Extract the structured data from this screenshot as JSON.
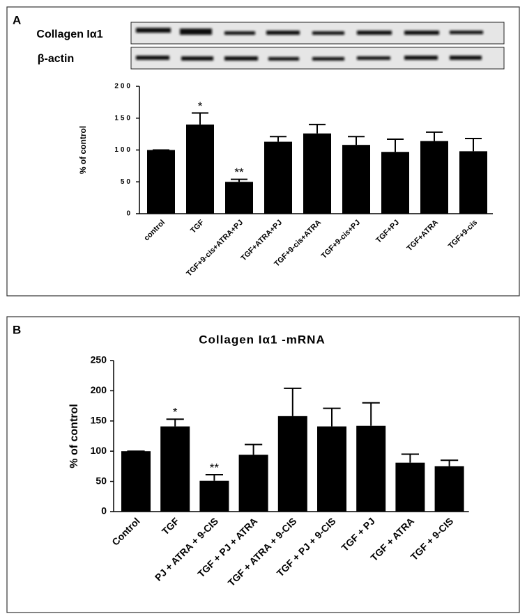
{
  "chart_data": [
    {
      "type": "bar",
      "panel": "A",
      "blot_labels": [
        "Collagen Iα1",
        "β-actin"
      ],
      "y_label": "%  of control",
      "categories": [
        "control",
        "TGF",
        "TGF+9-cis+ATRA+PJ",
        "TGF+ATRA+PJ",
        "TGF+9-cis+ATRA",
        "TGF+9-cis+PJ",
        "TGF+PJ",
        "TGF+ATRA",
        "TGF+9-cis"
      ],
      "values": [
        100,
        140,
        50,
        113,
        126,
        108,
        97,
        114,
        98
      ],
      "errors": [
        0,
        18,
        4,
        8,
        14,
        13,
        20,
        14,
        20
      ],
      "significance": [
        null,
        "*",
        "**",
        null,
        null,
        null,
        null,
        null,
        null
      ],
      "color": "#000000",
      "ylim": [
        0,
        200
      ],
      "yticks": [
        0,
        50,
        100,
        150,
        200
      ]
    },
    {
      "type": "bar",
      "panel": "B",
      "title": "Collagen Iα1 -mRNA",
      "y_label": "% of control",
      "categories": [
        "Control",
        "TGF",
        "PJ + ATRA + 9-CIS",
        "TGF + PJ + ATRA",
        "TGF + ATRA + 9-CIS",
        "TGF + PJ + 9-CIS",
        "TGF + PJ",
        "TGF + ATRA",
        "TGF + 9-CIS"
      ],
      "values": [
        100,
        141,
        51,
        94,
        158,
        141,
        142,
        81,
        75
      ],
      "errors": [
        0,
        12,
        10,
        17,
        46,
        30,
        38,
        14,
        10
      ],
      "significance": [
        null,
        "*",
        "**",
        null,
        null,
        null,
        null,
        null,
        null
      ],
      "color": "#000000",
      "ylim": [
        0,
        250
      ],
      "yticks": [
        0,
        50,
        100,
        150,
        200,
        250
      ]
    }
  ]
}
